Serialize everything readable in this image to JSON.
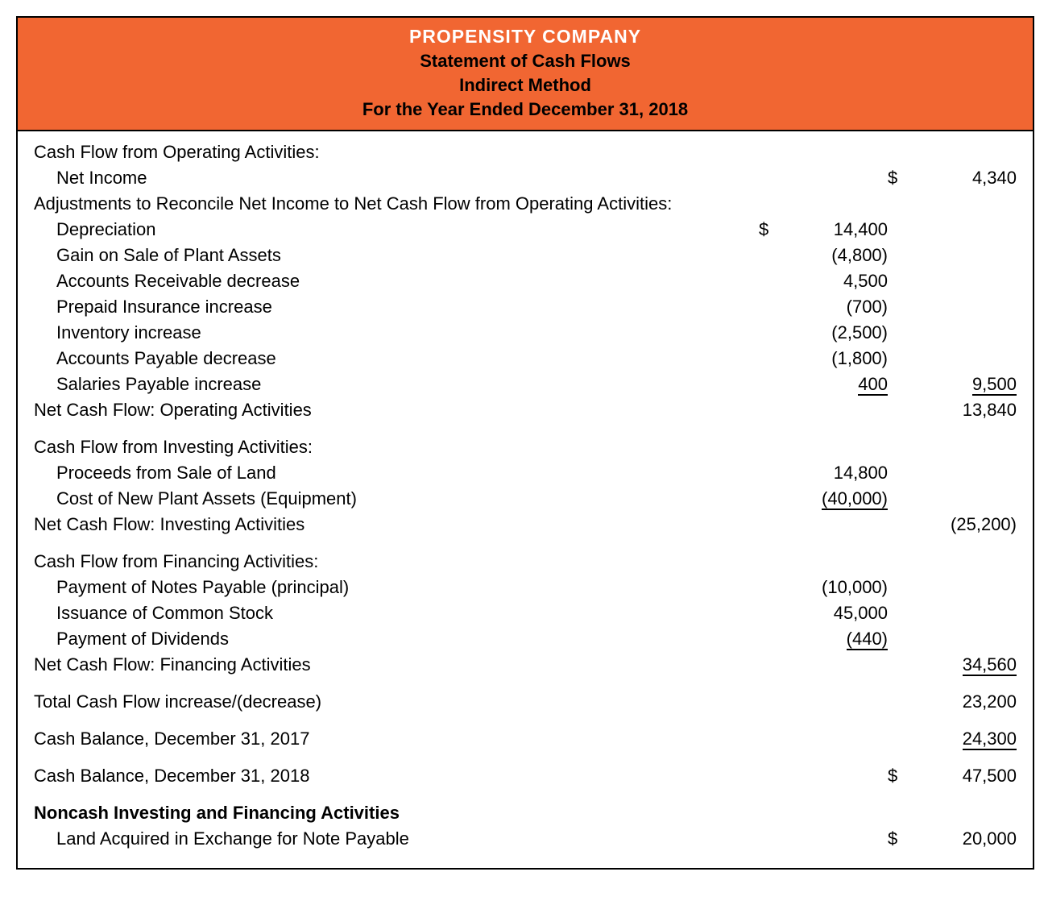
{
  "header": {
    "company": "PROPENSITY COMPANY",
    "title": "Statement of Cash Flows",
    "method": "Indirect Method",
    "period": "For the Year Ended December 31, 2018",
    "bg_color": "#f16632",
    "company_color": "#ffffff",
    "text_color": "#000000"
  },
  "style": {
    "font_family": "Arial, Helvetica, sans-serif",
    "body_fontsize": 22,
    "header_fontsize_company": 23,
    "header_fontsize_sub": 22,
    "border_color": "#000000",
    "underline_color": "#000000",
    "background_color": "#ffffff"
  },
  "rows": [
    {
      "label": "Cash Flow from Operating Activities:",
      "indent": 0,
      "col1": "",
      "col2": "",
      "col1_dollar": false,
      "col2_dollar": false,
      "col1_underline": false,
      "col2_underline": false,
      "bold": false,
      "spacer_before": false
    },
    {
      "label": "Net Income",
      "indent": 1,
      "col1": "",
      "col2": "4,340",
      "col1_dollar": false,
      "col2_dollar": true,
      "col1_underline": false,
      "col2_underline": false,
      "bold": false,
      "spacer_before": false
    },
    {
      "label": "Adjustments to Reconcile Net Income to Net Cash Flow from Operating Activities:",
      "indent": 0,
      "col1": "",
      "col2": "",
      "col1_dollar": false,
      "col2_dollar": false,
      "col1_underline": false,
      "col2_underline": false,
      "bold": false,
      "spacer_before": false
    },
    {
      "label": "Depreciation",
      "indent": 1,
      "col1": "14,400",
      "col2": "",
      "col1_dollar": true,
      "col2_dollar": false,
      "col1_underline": false,
      "col2_underline": false,
      "bold": false,
      "spacer_before": false
    },
    {
      "label": "Gain on Sale of Plant Assets",
      "indent": 1,
      "col1": "(4,800)",
      "col2": "",
      "col1_dollar": false,
      "col2_dollar": false,
      "col1_underline": false,
      "col2_underline": false,
      "bold": false,
      "spacer_before": false
    },
    {
      "label": "Accounts Receivable decrease",
      "indent": 1,
      "col1": "4,500",
      "col2": "",
      "col1_dollar": false,
      "col2_dollar": false,
      "col1_underline": false,
      "col2_underline": false,
      "bold": false,
      "spacer_before": false
    },
    {
      "label": "Prepaid Insurance increase",
      "indent": 1,
      "col1": "(700)",
      "col2": "",
      "col1_dollar": false,
      "col2_dollar": false,
      "col1_underline": false,
      "col2_underline": false,
      "bold": false,
      "spacer_before": false
    },
    {
      "label": "Inventory increase",
      "indent": 1,
      "col1": "(2,500)",
      "col2": "",
      "col1_dollar": false,
      "col2_dollar": false,
      "col1_underline": false,
      "col2_underline": false,
      "bold": false,
      "spacer_before": false
    },
    {
      "label": "Accounts Payable decrease",
      "indent": 1,
      "col1": "(1,800)",
      "col2": "",
      "col1_dollar": false,
      "col2_dollar": false,
      "col1_underline": false,
      "col2_underline": false,
      "bold": false,
      "spacer_before": false
    },
    {
      "label": "Salaries Payable increase",
      "indent": 1,
      "col1": "400",
      "col2": "9,500",
      "col1_dollar": false,
      "col2_dollar": false,
      "col1_underline": true,
      "col2_underline": true,
      "bold": false,
      "spacer_before": false
    },
    {
      "label": "Net Cash Flow: Operating Activities",
      "indent": 0,
      "col1": "",
      "col2": "13,840",
      "col1_dollar": false,
      "col2_dollar": false,
      "col1_underline": false,
      "col2_underline": false,
      "bold": false,
      "spacer_before": false
    },
    {
      "label": "Cash Flow from Investing Activities:",
      "indent": 0,
      "col1": "",
      "col2": "",
      "col1_dollar": false,
      "col2_dollar": false,
      "col1_underline": false,
      "col2_underline": false,
      "bold": false,
      "spacer_before": true
    },
    {
      "label": "Proceeds from Sale of Land",
      "indent": 1,
      "col1": "14,800",
      "col2": "",
      "col1_dollar": false,
      "col2_dollar": false,
      "col1_underline": false,
      "col2_underline": false,
      "bold": false,
      "spacer_before": false
    },
    {
      "label": "Cost of New Plant Assets (Equipment)",
      "indent": 1,
      "col1": "(40,000)",
      "col2": "",
      "col1_dollar": false,
      "col2_dollar": false,
      "col1_underline": true,
      "col2_underline": false,
      "bold": false,
      "spacer_before": false
    },
    {
      "label": "Net Cash Flow: Investing Activities",
      "indent": 0,
      "col1": "",
      "col2": "(25,200)",
      "col1_dollar": false,
      "col2_dollar": false,
      "col1_underline": false,
      "col2_underline": false,
      "bold": false,
      "spacer_before": false
    },
    {
      "label": "Cash Flow from Financing Activities:",
      "indent": 0,
      "col1": "",
      "col2": "",
      "col1_dollar": false,
      "col2_dollar": false,
      "col1_underline": false,
      "col2_underline": false,
      "bold": false,
      "spacer_before": true
    },
    {
      "label": "Payment of Notes Payable (principal)",
      "indent": 1,
      "col1": "(10,000)",
      "col2": "",
      "col1_dollar": false,
      "col2_dollar": false,
      "col1_underline": false,
      "col2_underline": false,
      "bold": false,
      "spacer_before": false
    },
    {
      "label": "Issuance of Common Stock",
      "indent": 1,
      "col1": "45,000",
      "col2": "",
      "col1_dollar": false,
      "col2_dollar": false,
      "col1_underline": false,
      "col2_underline": false,
      "bold": false,
      "spacer_before": false
    },
    {
      "label": "Payment of Dividends",
      "indent": 1,
      "col1": "(440)",
      "col2": "",
      "col1_dollar": false,
      "col2_dollar": false,
      "col1_underline": true,
      "col2_underline": false,
      "bold": false,
      "spacer_before": false
    },
    {
      "label": "Net Cash Flow: Financing Activities",
      "indent": 0,
      "col1": "",
      "col2": "34,560",
      "col1_dollar": false,
      "col2_dollar": false,
      "col1_underline": false,
      "col2_underline": true,
      "bold": false,
      "spacer_before": false
    },
    {
      "label": "Total Cash Flow increase/(decrease)",
      "indent": 0,
      "col1": "",
      "col2": "23,200",
      "col1_dollar": false,
      "col2_dollar": false,
      "col1_underline": false,
      "col2_underline": false,
      "bold": false,
      "spacer_before": true
    },
    {
      "label": "Cash Balance, December 31, 2017",
      "indent": 0,
      "col1": "",
      "col2": "24,300",
      "col1_dollar": false,
      "col2_dollar": false,
      "col1_underline": false,
      "col2_underline": true,
      "bold": false,
      "spacer_before": true
    },
    {
      "label": "Cash Balance, December 31, 2018",
      "indent": 0,
      "col1": "",
      "col2": "47,500",
      "col1_dollar": false,
      "col2_dollar": true,
      "col1_underline": false,
      "col2_underline": false,
      "bold": false,
      "spacer_before": true
    },
    {
      "label": "Noncash Investing and Financing Activities",
      "indent": 0,
      "col1": "",
      "col2": "",
      "col1_dollar": false,
      "col2_dollar": false,
      "col1_underline": false,
      "col2_underline": false,
      "bold": true,
      "spacer_before": true
    },
    {
      "label": "Land Acquired in Exchange for Note Payable",
      "indent": 1,
      "col1": "",
      "col2": "20,000",
      "col1_dollar": false,
      "col2_dollar": true,
      "col1_underline": false,
      "col2_underline": false,
      "bold": false,
      "spacer_before": false
    }
  ]
}
